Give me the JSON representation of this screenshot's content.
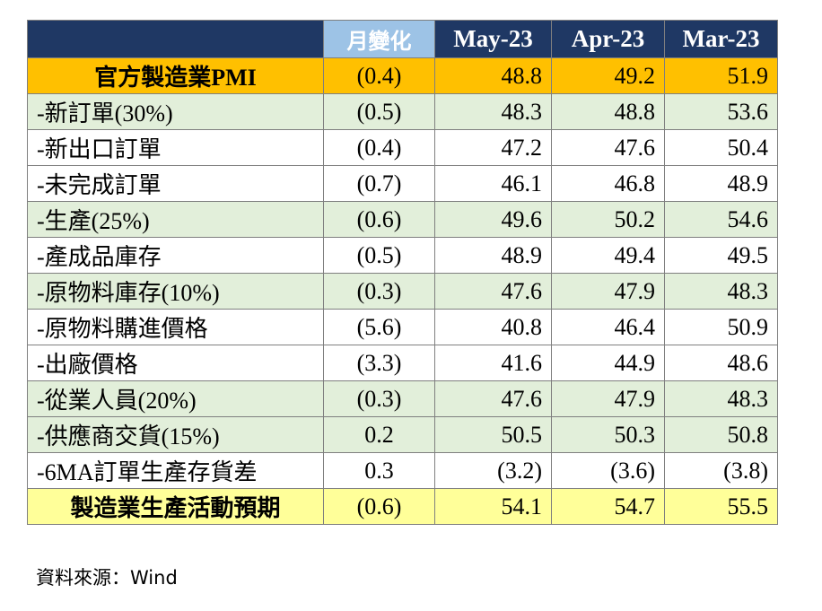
{
  "chart_data": {
    "type": "table",
    "columns": [
      "",
      "月變化",
      "May-23",
      "Apr-23",
      "Mar-23"
    ],
    "rows": [
      {
        "label": "官方製造業PMI",
        "change": "(0.4)",
        "values": [
          "48.8",
          "49.2",
          "51.9"
        ],
        "style": "orange"
      },
      {
        "label": "-新訂單(30%)",
        "change": "(0.5)",
        "values": [
          "48.3",
          "48.8",
          "53.6"
        ],
        "style": "green"
      },
      {
        "label": "-新出口訂單",
        "change": "(0.4)",
        "values": [
          "47.2",
          "47.6",
          "50.4"
        ],
        "style": "white"
      },
      {
        "label": "-未完成訂單",
        "change": "(0.7)",
        "values": [
          "46.1",
          "46.8",
          "48.9"
        ],
        "style": "white"
      },
      {
        "label": "-生產(25%)",
        "change": "(0.6)",
        "values": [
          "49.6",
          "50.2",
          "54.6"
        ],
        "style": "green"
      },
      {
        "label": "-產成品庫存",
        "change": "(0.5)",
        "values": [
          "48.9",
          "49.4",
          "49.5"
        ],
        "style": "white"
      },
      {
        "label": "-原物料庫存(10%)",
        "change": "(0.3)",
        "values": [
          "47.6",
          "47.9",
          "48.3"
        ],
        "style": "green"
      },
      {
        "label": "-原物料購進價格",
        "change": "(5.6)",
        "values": [
          "40.8",
          "46.4",
          "50.9"
        ],
        "style": "white"
      },
      {
        "label": "-出廠價格",
        "change": "(3.3)",
        "values": [
          "41.6",
          "44.9",
          "48.6"
        ],
        "style": "white"
      },
      {
        "label": "-從業人員(20%)",
        "change": "(0.3)",
        "values": [
          "47.6",
          "47.9",
          "48.3"
        ],
        "style": "green"
      },
      {
        "label": "-供應商交貨(15%)",
        "change": "0.2",
        "values": [
          "50.5",
          "50.3",
          "50.8"
        ],
        "style": "green"
      },
      {
        "label": "-6MA訂單生產存貨差",
        "change": "0.3",
        "values": [
          "(3.2)",
          "(3.6)",
          "(3.8)"
        ],
        "style": "white"
      },
      {
        "label": "製造業生產活動預期",
        "change": "(0.6)",
        "values": [
          "54.1",
          "54.7",
          "55.5"
        ],
        "style": "yellow"
      }
    ]
  },
  "source": "資料來源：Wind",
  "colors": {
    "header": "#1f3864",
    "change_header": "#9dc3e6",
    "orange": "#ffc000",
    "green": "#e2efda",
    "yellow": "#ffff99",
    "negative": "#ff0000"
  }
}
